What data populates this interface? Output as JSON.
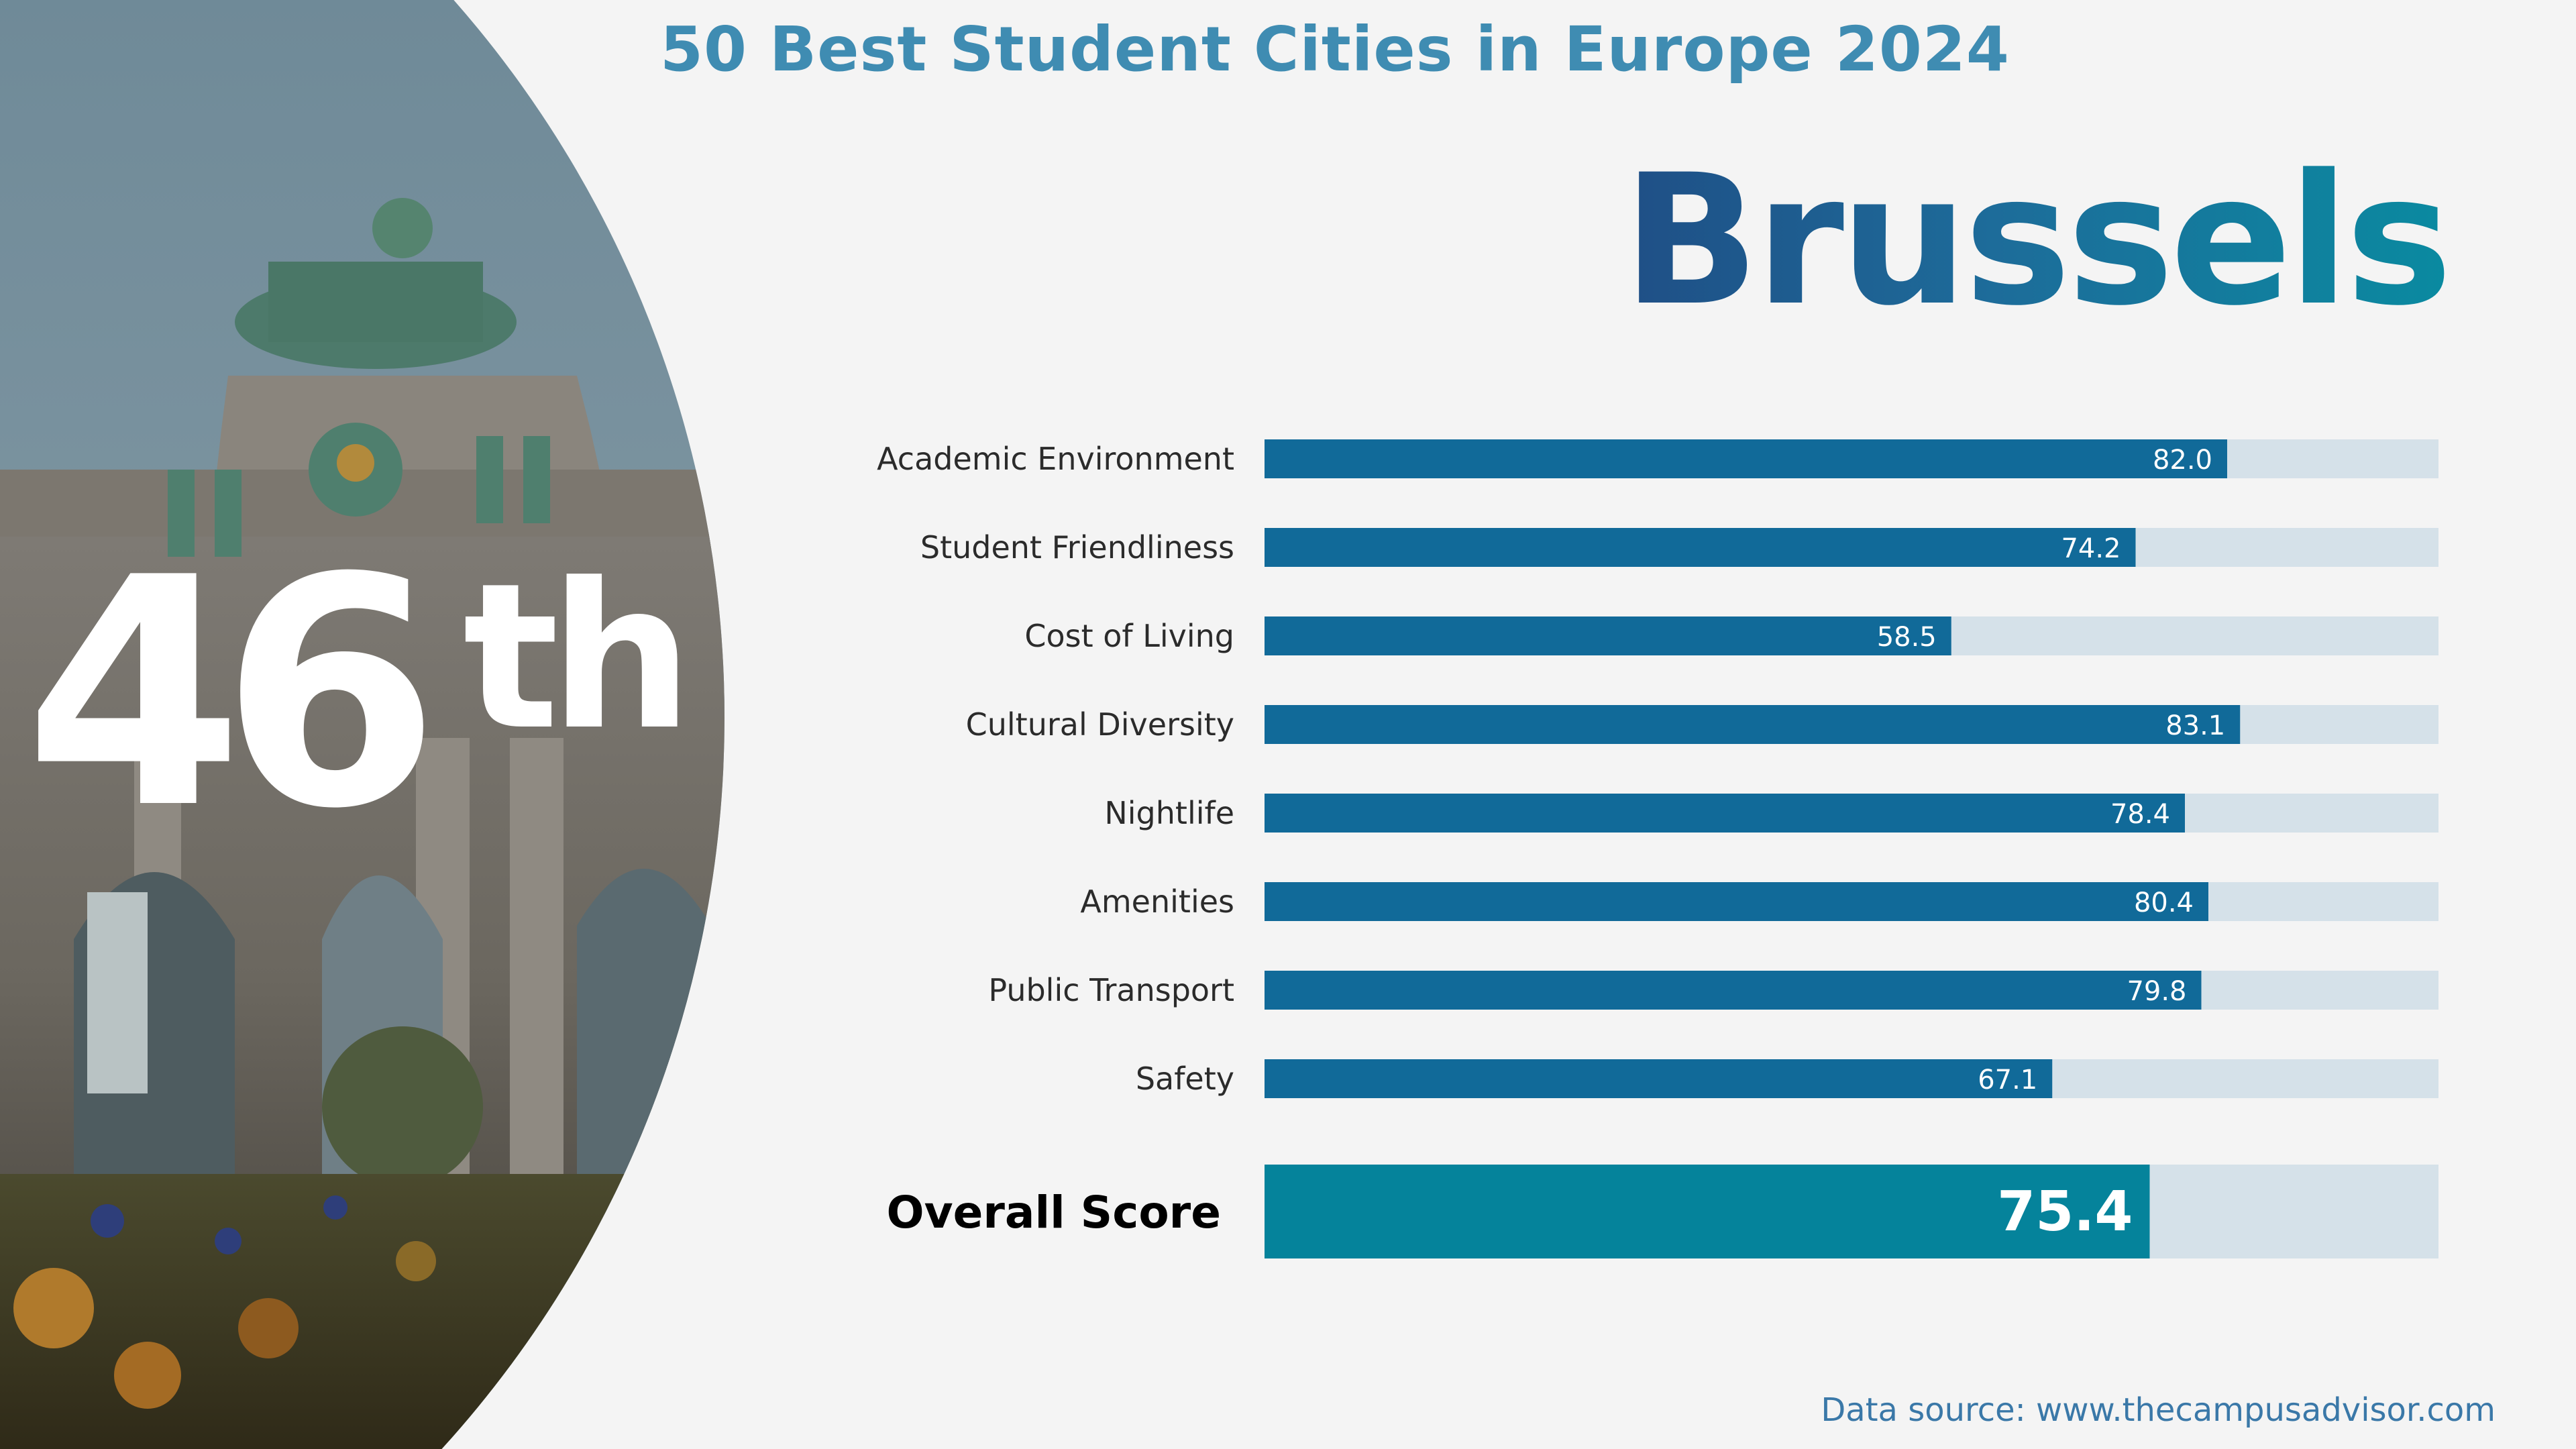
{
  "title": "50 Best Student Cities in Europe 2024",
  "city": "Brussels",
  "rank": {
    "number": "46",
    "suffix": "th"
  },
  "source": "Data source: www.thecampusadvisor.com",
  "colors": {
    "title": "#3f8cb2",
    "bar": "#116a99",
    "overall_bar": "#05839b",
    "track": "#d5e1e9",
    "label": "#2b2b2b"
  },
  "chart_data": {
    "type": "bar",
    "orientation": "horizontal",
    "title": "",
    "xlabel": "",
    "ylabel": "",
    "xlim": [
      0,
      100
    ],
    "grid": false,
    "categories": [
      "Academic Environment",
      "Student Friendliness",
      "Cost of Living",
      "Cultural Diversity",
      "Nightlife",
      "Amenities",
      "Public Transport",
      "Safety"
    ],
    "values": [
      82.0,
      74.2,
      58.5,
      83.1,
      78.4,
      80.4,
      79.8,
      67.1
    ],
    "value_labels": [
      "82.0",
      "74.2",
      "58.5",
      "83.1",
      "78.4",
      "80.4",
      "79.8",
      "67.1"
    ],
    "overall": {
      "label": "Overall Score",
      "value": 75.4,
      "value_label": "75.4"
    }
  }
}
